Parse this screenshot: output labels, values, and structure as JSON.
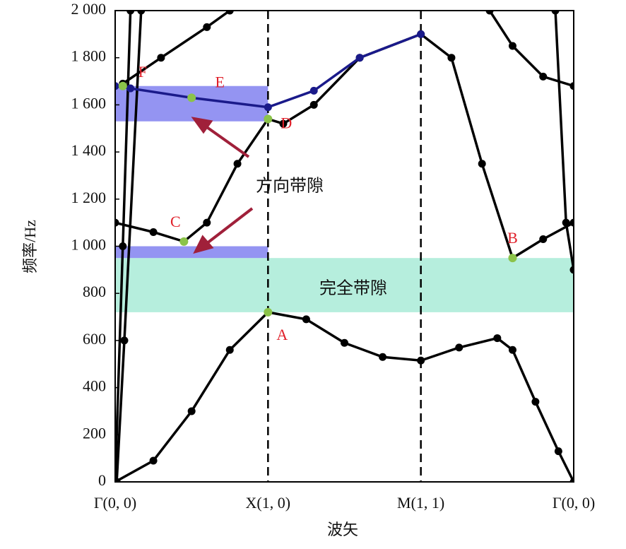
{
  "chart_data": {
    "type": "line",
    "x_label": "波矢",
    "y_label": "频率/Hz",
    "xlim": [
      0,
      3
    ],
    "ylim": [
      0,
      2000
    ],
    "xticks": [
      {
        "value": 0,
        "label": "Γ(0, 0)"
      },
      {
        "value": 1,
        "label": "X(1, 0)"
      },
      {
        "value": 2,
        "label": "M(1, 1)"
      },
      {
        "value": 3,
        "label": "Γ(0, 0)"
      }
    ],
    "yticks": [
      0,
      200,
      400,
      600,
      800,
      {
        "value": 1000,
        "label": "1 000"
      },
      {
        "value": 1200,
        "label": "1 200"
      },
      {
        "value": 1400,
        "label": "1 400"
      },
      {
        "value": 1600,
        "label": "1 600"
      },
      {
        "value": 1800,
        "label": "1 800"
      },
      {
        "value": 2000,
        "label": "2 000"
      }
    ],
    "series": [
      {
        "color": "#000000",
        "x": [
          0,
          0.25,
          0.5,
          0.75,
          1,
          1.25,
          1.5,
          1.75,
          2,
          2.25,
          2.5,
          2.6,
          2.75,
          2.9,
          3
        ],
        "values": [
          0,
          90,
          300,
          560,
          720,
          690,
          590,
          530,
          515,
          570,
          610,
          560,
          340,
          130,
          0
        ]
      },
      {
        "color": "#000000",
        "x": [
          0,
          0.05,
          0.1
        ],
        "values": [
          0,
          1000,
          2000
        ]
      },
      {
        "color": "#000000",
        "x": [
          0.01,
          0.06,
          0.17
        ],
        "values": [
          0,
          600,
          2000
        ]
      },
      {
        "color": "#000000",
        "x": [
          0,
          0.25,
          0.45,
          0.6,
          0.8,
          1,
          1.1,
          1.3,
          1.6,
          2,
          2.2,
          2.4,
          2.6,
          2.8,
          3
        ],
        "values": [
          1100,
          1060,
          1020,
          1100,
          1350,
          1540,
          1520,
          1600,
          1800,
          1900,
          1800,
          1350,
          950,
          1030,
          1100
        ]
      },
      {
        "color": "#1a1a8a",
        "x": [
          0,
          0.1,
          0.5,
          1,
          1.3,
          1.6,
          2
        ],
        "values": [
          1680,
          1670,
          1630,
          1590,
          1660,
          1800,
          1900
        ]
      },
      {
        "color": "#000000",
        "x": [
          2.45,
          2.6,
          2.8,
          3
        ],
        "values": [
          2000,
          1850,
          1720,
          1680
        ]
      },
      {
        "color": "#000000",
        "x": [
          0.05,
          0.3,
          0.6,
          0.75
        ],
        "values": [
          1690,
          1800,
          1930,
          2000
        ]
      },
      {
        "color": "#000000",
        "x": [
          2.88,
          2.95,
          3
        ],
        "values": [
          2000,
          1100,
          900
        ]
      }
    ],
    "shaded_bands": [
      {
        "color": "#9ee8d2",
        "x": [
          0,
          3
        ],
        "y": [
          720,
          950
        ]
      },
      {
        "color": "#7070ee",
        "x": [
          0,
          1
        ],
        "y": [
          950,
          1000
        ]
      },
      {
        "color": "#7070ee",
        "x": [
          0,
          1
        ],
        "y": [
          1530,
          1680
        ]
      }
    ],
    "points": [
      {
        "label": "A",
        "x": 1,
        "y": 720
      },
      {
        "label": "B",
        "x": 2.6,
        "y": 950
      },
      {
        "label": "C",
        "x": 0.45,
        "y": 1020
      },
      {
        "label": "D",
        "x": 1,
        "y": 1540
      },
      {
        "label": "E",
        "x": 0.5,
        "y": 1630
      },
      {
        "label": "F",
        "x": 0.05,
        "y": 1680
      }
    ],
    "point_color": "#8bc34a",
    "point_label_color": "#e0202a",
    "direction_gap_label": "方向带隙",
    "complete_gap_label": "完全带隙"
  }
}
